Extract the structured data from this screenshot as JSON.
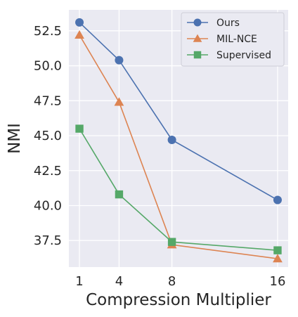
{
  "chart_data": {
    "type": "line",
    "title": "",
    "xlabel": "Compression Multiplier",
    "ylabel": "NMI",
    "x": [
      1,
      4,
      8,
      16
    ],
    "xticks": [
      1,
      4,
      8,
      16
    ],
    "xtick_labels": [
      "1",
      "4",
      "8",
      "16"
    ],
    "xlim": [
      0.2,
      16.8
    ],
    "ylim": [
      35.6,
      54.0
    ],
    "yticks": [
      37.5,
      40.0,
      42.5,
      45.0,
      47.5,
      50.0,
      52.5
    ],
    "ytick_labels": [
      "37.5",
      "40.0",
      "42.5",
      "45.0",
      "47.5",
      "50.0",
      "52.5"
    ],
    "grid": true,
    "legend_position": "top-right",
    "series": [
      {
        "name": "Ours",
        "values": [
          53.1,
          50.4,
          44.7,
          40.4
        ],
        "color": "#4c72b0",
        "marker": "circle"
      },
      {
        "name": "MIL-NCE",
        "values": [
          52.2,
          47.4,
          37.2,
          36.2
        ],
        "color": "#dd8452",
        "marker": "triangle"
      },
      {
        "name": "Supervised",
        "values": [
          45.5,
          40.8,
          37.4,
          36.8
        ],
        "color": "#55a868",
        "marker": "square"
      }
    ]
  }
}
